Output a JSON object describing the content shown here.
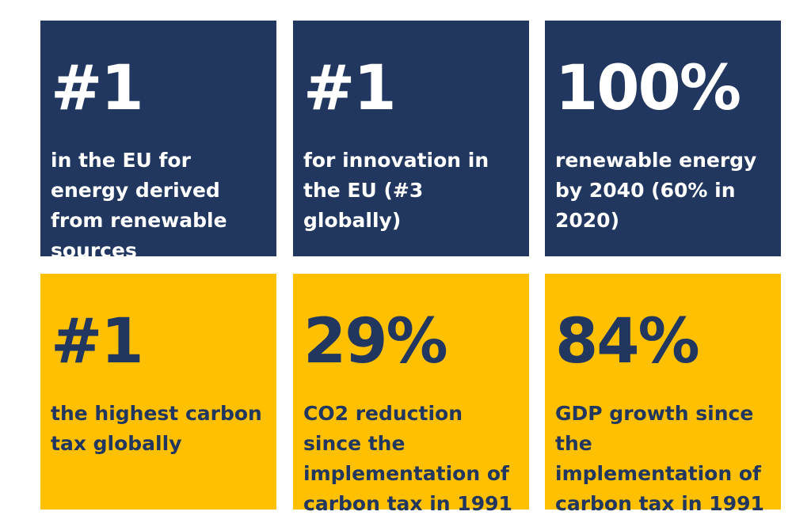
{
  "colors": {
    "navy": "#22375f",
    "gold": "#fec000",
    "white": "#ffffff"
  },
  "tiles": [
    {
      "stat": "#1",
      "text": "in the EU for energy derived from renewable sources"
    },
    {
      "stat": "#1",
      "text": "for innovation in the EU (#3 globally)"
    },
    {
      "stat": "100%",
      "text": "renewable energy by 2040 (60% in 2020)"
    },
    {
      "stat": "#1",
      "text": "the highest carbon tax globally"
    },
    {
      "stat": "29%",
      "text": "CO2 reduction since the implementation of carbon tax in 1991"
    },
    {
      "stat": "84%",
      "text": "GDP growth since the implementation of carbon tax in 1991"
    }
  ]
}
